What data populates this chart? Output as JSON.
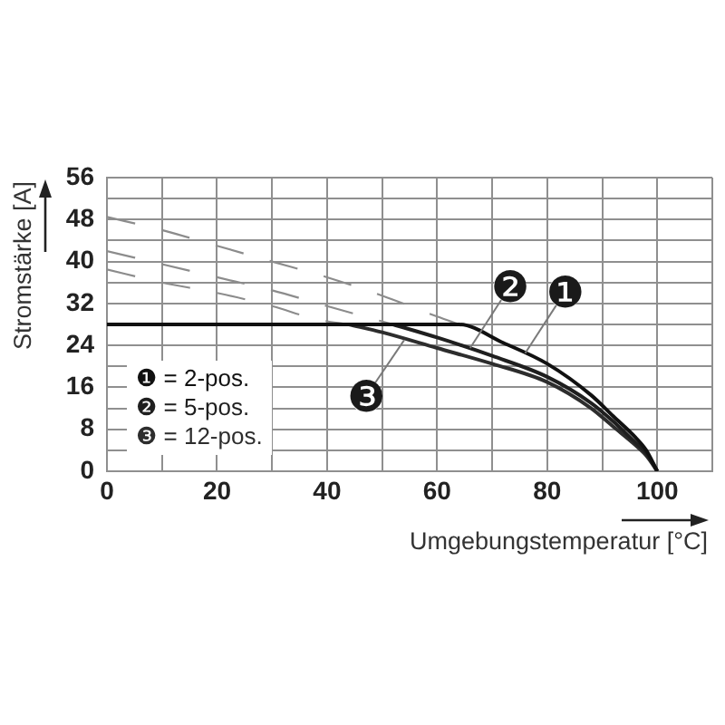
{
  "chart_data": {
    "type": "line",
    "xlabel": "Umgebungstemperatur [°C]",
    "ylabel": "Stromstärke [A]",
    "xlim": [
      0,
      110
    ],
    "xticks": [
      0,
      {
        "value": 10,
        "label": null
      },
      20,
      {
        "value": 30,
        "label": null
      },
      40,
      {
        "value": 50,
        "label": null
      },
      60,
      {
        "value": 70,
        "label": null
      },
      80,
      {
        "value": 90,
        "label": null
      },
      100,
      {
        "value": 110,
        "label": null
      }
    ],
    "ylim": [
      0,
      56
    ],
    "yticks": [
      0,
      {
        "value": 4,
        "label": null
      },
      8,
      {
        "value": 12,
        "label": null
      },
      16,
      {
        "value": 20,
        "label": null
      },
      24,
      {
        "value": 28,
        "label": null
      },
      32,
      {
        "value": 36,
        "label": null
      },
      40,
      {
        "value": 44,
        "label": null
      },
      48,
      {
        "value": 52,
        "label": null
      },
      56
    ],
    "grid": true,
    "legend": "bottom left",
    "series": [
      {
        "name": "❶ = 2-pos.",
        "color": "#111111",
        "x": [
          0,
          64,
          72,
          80,
          88,
          92,
          96,
          98,
          100
        ],
        "values": [
          28,
          28,
          24.5,
          20.5,
          14.5,
          10.5,
          6.5,
          4,
          0
        ]
      },
      {
        "name": "❷ = 5-pos.",
        "color": "#1f1f1f",
        "x": [
          52,
          60,
          70,
          80,
          88,
          92,
          96,
          98,
          100
        ],
        "values": [
          28,
          25.5,
          22,
          18,
          13,
          9.5,
          5.5,
          3.5,
          0
        ]
      },
      {
        "name": "❸ = 12-pos.",
        "color": "#2d2d2d",
        "x": [
          44,
          50,
          60,
          70,
          80,
          88,
          92,
          96,
          98,
          100
        ],
        "values": [
          28,
          26.5,
          23.5,
          20.5,
          17,
          12,
          8.5,
          5,
          3,
          0
        ]
      },
      {
        "color": "#8c8c8c",
        "line_style": "dashed",
        "x": [
          0,
          10,
          20,
          30,
          40,
          50,
          60,
          64
        ],
        "values": [
          48.5,
          46,
          43,
          40,
          37,
          33.5,
          29.5,
          28
        ]
      },
      {
        "color": "#8c8c8c",
        "line_style": "dashed",
        "x": [
          0,
          10,
          20,
          30,
          40,
          52
        ],
        "values": [
          42,
          39.5,
          37,
          34.5,
          31.5,
          28
        ]
      },
      {
        "color": "#8c8c8c",
        "line_style": "dashed",
        "x": [
          0,
          10,
          20,
          30,
          38,
          44
        ],
        "values": [
          38.5,
          36,
          34,
          31.5,
          29,
          28
        ]
      }
    ],
    "annotations": [
      {
        "text": "❶",
        "x": 76,
        "y": 22.5
      },
      {
        "text": "❷",
        "x": 66,
        "y": 23.5
      },
      {
        "text": "❸",
        "x": 54,
        "y": 25
      }
    ]
  }
}
